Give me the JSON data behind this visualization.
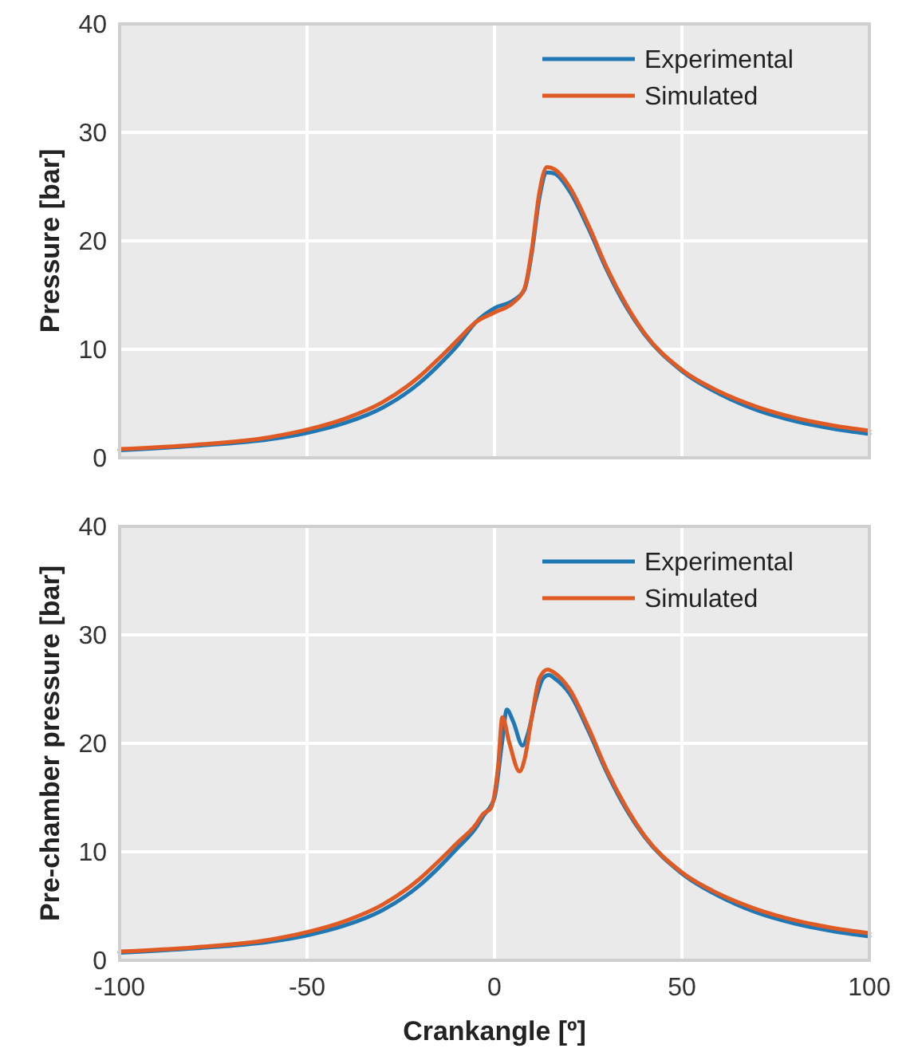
{
  "chart_data": [
    {
      "type": "line",
      "ylabel": "Pressure [bar]",
      "xlim": [
        -100,
        100
      ],
      "xticks": [
        -100,
        -50,
        0,
        50,
        100
      ],
      "ylim": [
        0,
        40
      ],
      "yticks": [
        0,
        10,
        20,
        30,
        40
      ],
      "tick_labels": "y",
      "grid": true,
      "legend": "top right",
      "series": [
        {
          "name": "Experimental",
          "color": "#1f77b4",
          "x": [
            -100,
            -80,
            -60,
            -50,
            -40,
            -30,
            -20,
            -15,
            -10,
            -5,
            0,
            5,
            8,
            10,
            12,
            14,
            16,
            20,
            25,
            30,
            35,
            40,
            50,
            60,
            70,
            80,
            90,
            100
          ],
          "values": [
            0.7,
            1.1,
            1.7,
            2.3,
            3.2,
            4.6,
            6.9,
            8.5,
            10.3,
            12.5,
            13.8,
            14.5,
            15.5,
            19,
            24,
            26.3,
            26.2,
            24.6,
            21.2,
            17.3,
            14,
            11.4,
            8,
            5.9,
            4.4,
            3.4,
            2.7,
            2.2
          ]
        },
        {
          "name": "Simulated",
          "color": "#e05a24",
          "x": [
            -100,
            -80,
            -60,
            -50,
            -40,
            -30,
            -20,
            -15,
            -10,
            -5,
            0,
            5,
            8,
            10,
            12,
            14,
            16,
            20,
            25,
            30,
            35,
            40,
            50,
            60,
            70,
            80,
            90,
            100
          ],
          "values": [
            0.8,
            1.2,
            1.9,
            2.6,
            3.6,
            5.1,
            7.5,
            9.1,
            10.8,
            12.5,
            13.4,
            14.3,
            15.6,
            19.3,
            24.5,
            26.8,
            26.6,
            25,
            21.5,
            17.5,
            14.2,
            11.5,
            8.1,
            6.1,
            4.7,
            3.7,
            3,
            2.5
          ]
        }
      ]
    },
    {
      "type": "line",
      "xlabel": "Crankangle [º]",
      "ylabel": "Pre-chamber pressure [bar]",
      "xlim": [
        -100,
        100
      ],
      "xticks": [
        -100,
        -50,
        0,
        50,
        100
      ],
      "ylim": [
        0,
        40
      ],
      "yticks": [
        0,
        10,
        20,
        30,
        40
      ],
      "grid": true,
      "legend": "top right",
      "series": [
        {
          "name": "Experimental",
          "color": "#1f77b4",
          "x": [
            -100,
            -80,
            -60,
            -50,
            -40,
            -30,
            -20,
            -15,
            -10,
            -5,
            -3,
            0,
            2,
            3.3,
            5,
            7.5,
            9,
            11,
            13,
            14.5,
            16,
            20,
            25,
            30,
            35,
            40,
            50,
            60,
            70,
            80,
            90,
            100
          ],
          "values": [
            0.7,
            1.1,
            1.7,
            2.3,
            3.2,
            4.6,
            6.9,
            8.5,
            10.3,
            12.2,
            13.3,
            15,
            20,
            23.1,
            22,
            19.8,
            21,
            24,
            26,
            26.3,
            26,
            24.6,
            21.2,
            17.3,
            14,
            11.4,
            8,
            5.9,
            4.4,
            3.4,
            2.7,
            2.2
          ]
        },
        {
          "name": "Simulated",
          "color": "#e05a24",
          "x": [
            -100,
            -80,
            -60,
            -50,
            -40,
            -30,
            -20,
            -15,
            -10,
            -5,
            -3,
            -1,
            1,
            2.1,
            4,
            6.7,
            8,
            10,
            12,
            14.2,
            16,
            20,
            25,
            30,
            35,
            40,
            50,
            60,
            70,
            80,
            90,
            100
          ],
          "values": [
            0.8,
            1.2,
            1.9,
            2.6,
            3.6,
            5.1,
            7.5,
            9.1,
            10.8,
            12.5,
            13.5,
            14,
            18,
            22.4,
            20,
            17.4,
            18.5,
            22.5,
            26,
            26.8,
            26.5,
            25,
            21.5,
            17.5,
            14.2,
            11.5,
            8.1,
            6.1,
            4.7,
            3.7,
            3,
            2.5
          ]
        }
      ]
    }
  ]
}
